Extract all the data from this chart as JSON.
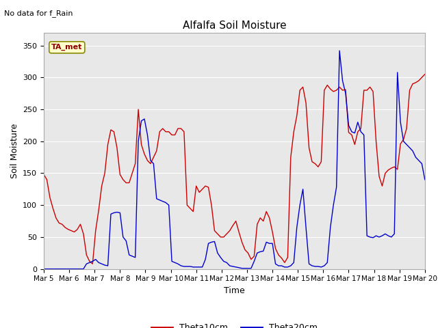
{
  "title": "Alfalfa Soil Moisture",
  "xlabel": "Time",
  "ylabel": "Soil Moisture",
  "annotation_top_left": "No data for f_Rain",
  "annotation_box": "TA_met",
  "ylim": [
    0,
    370
  ],
  "yticks": [
    0,
    50,
    100,
    150,
    200,
    250,
    300,
    350
  ],
  "plot_bg_color": "#e8e8e8",
  "line1_color": "#cc0000",
  "line2_color": "#0000cc",
  "legend_entries": [
    "Theta10cm",
    "Theta20cm"
  ],
  "xtick_labels": [
    "Mar 5",
    "Mar 6",
    "Mar 7",
    "Mar 8",
    "Mar 9",
    "Mar 10",
    "Mar 11",
    "Mar 12",
    "Mar 13",
    "Mar 14",
    "Mar 15",
    "Mar 16",
    "Mar 17",
    "Mar 18",
    "Mar 19",
    "Mar 20"
  ],
  "theta10": [
    148,
    140,
    112,
    95,
    80,
    72,
    70,
    65,
    62,
    60,
    58,
    62,
    70,
    55,
    22,
    12,
    8,
    60,
    92,
    130,
    150,
    195,
    218,
    215,
    190,
    148,
    140,
    135,
    135,
    150,
    165,
    250,
    195,
    180,
    170,
    165,
    175,
    185,
    215,
    220,
    215,
    215,
    210,
    210,
    220,
    220,
    215,
    100,
    95,
    90,
    130,
    120,
    125,
    130,
    128,
    100,
    60,
    55,
    50,
    50,
    55,
    60,
    68,
    75,
    58,
    42,
    30,
    25,
    15,
    20,
    70,
    80,
    75,
    90,
    80,
    58,
    32,
    22,
    17,
    10,
    18,
    175,
    215,
    240,
    280,
    285,
    260,
    190,
    168,
    165,
    160,
    168,
    280,
    288,
    282,
    278,
    280,
    285,
    280,
    281,
    214,
    210,
    195,
    215,
    220,
    280,
    280,
    285,
    278,
    200,
    145,
    130,
    150,
    155,
    158,
    160,
    156,
    196,
    203,
    220,
    280,
    290,
    292,
    295,
    300,
    305
  ],
  "theta20": [
    0,
    0,
    0,
    0,
    0,
    0,
    0,
    0,
    0,
    0,
    0,
    0,
    0,
    0,
    8,
    10,
    12,
    15,
    10,
    8,
    6,
    5,
    86,
    88,
    89,
    88,
    50,
    44,
    22,
    20,
    18,
    200,
    232,
    235,
    210,
    170,
    165,
    110,
    108,
    106,
    104,
    100,
    12,
    10,
    8,
    5,
    4,
    4,
    4,
    3,
    3,
    3,
    3,
    15,
    40,
    42,
    43,
    25,
    18,
    12,
    10,
    5,
    4,
    3,
    2,
    1,
    1,
    1,
    1,
    12,
    25,
    27,
    28,
    42,
    40,
    40,
    8,
    5,
    5,
    3,
    3,
    5,
    10,
    65,
    100,
    125,
    65,
    8,
    5,
    4,
    4,
    3,
    5,
    10,
    65,
    100,
    128,
    342,
    295,
    275,
    225,
    215,
    213,
    230,
    215,
    210,
    52,
    50,
    49,
    52,
    50,
    52,
    55,
    52,
    50,
    55,
    308,
    230,
    200,
    195,
    190,
    185,
    175,
    170,
    165,
    140
  ]
}
